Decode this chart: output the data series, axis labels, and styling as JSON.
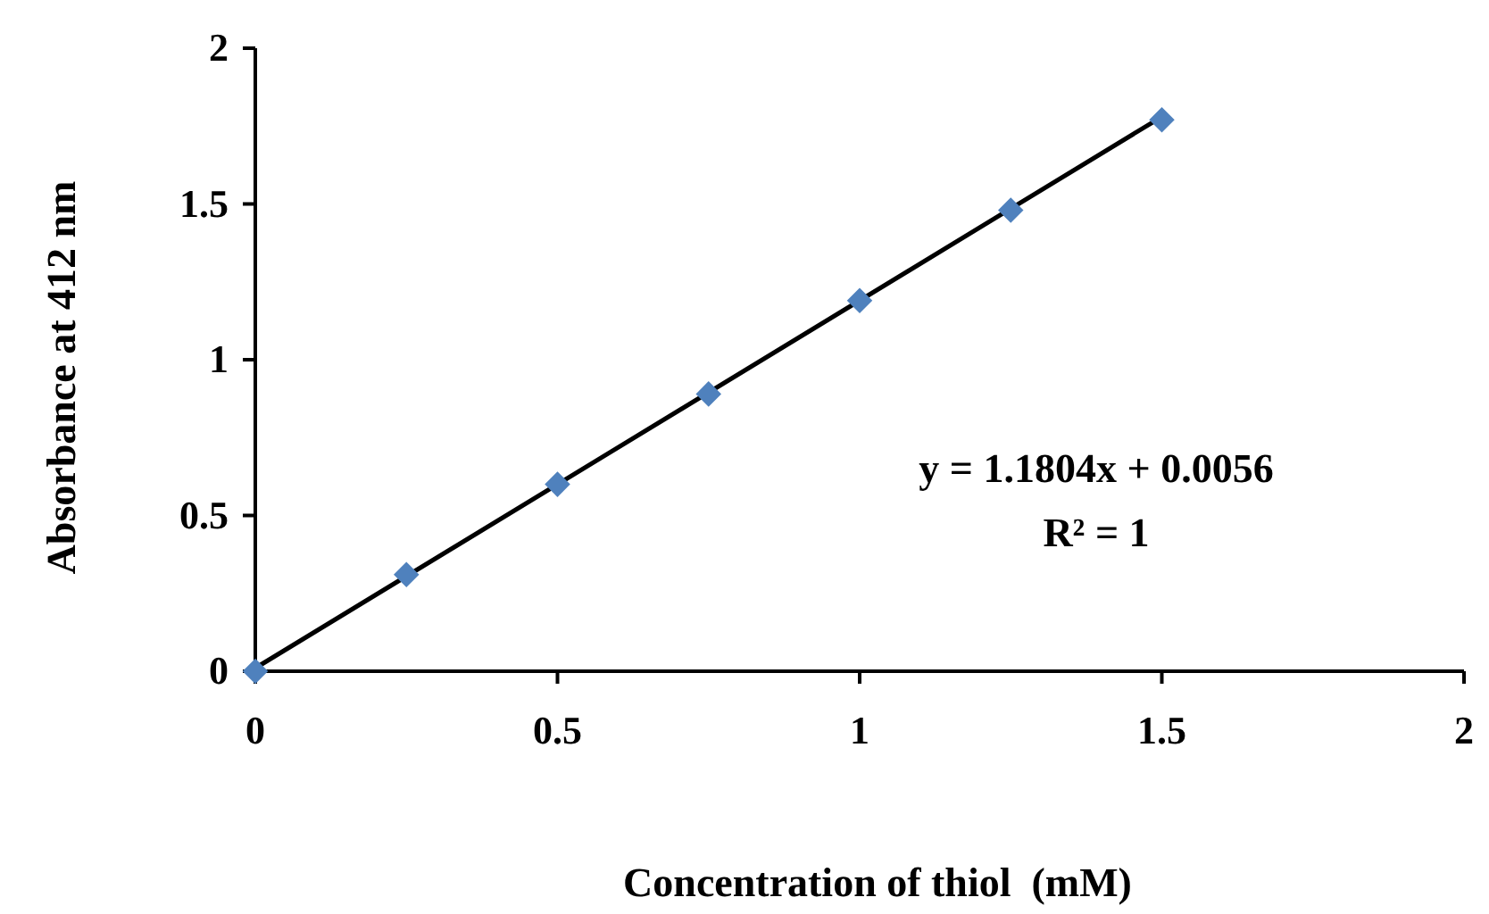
{
  "chart_data": {
    "type": "scatter",
    "xlabel": "Concentration of thiol  (mM)",
    "ylabel": "Absorbance at 412 nm",
    "xlim": [
      0,
      2
    ],
    "xticks": [
      0,
      0.5,
      1,
      1.5,
      2
    ],
    "ylim": [
      0,
      2
    ],
    "yticks": [
      0,
      0.5,
      1,
      1.5,
      2
    ],
    "grid": false,
    "marker": "diamond",
    "series": [
      {
        "color": "#4f81bd",
        "x": [
          0,
          0.25,
          0.5,
          0.75,
          1,
          1.25,
          1.5
        ],
        "values": [
          0,
          0.31,
          0.6,
          0.89,
          1.19,
          1.48,
          1.77
        ]
      },
      {
        "type": "line",
        "color": "#000000",
        "x": [
          0,
          1.5
        ],
        "values": [
          0.01,
          1.78
        ],
        "marker": "none",
        "line_style": "solid"
      }
    ],
    "annotations": [
      "y = 1.1804x + 0.0056",
      "R² = 1"
    ]
  }
}
